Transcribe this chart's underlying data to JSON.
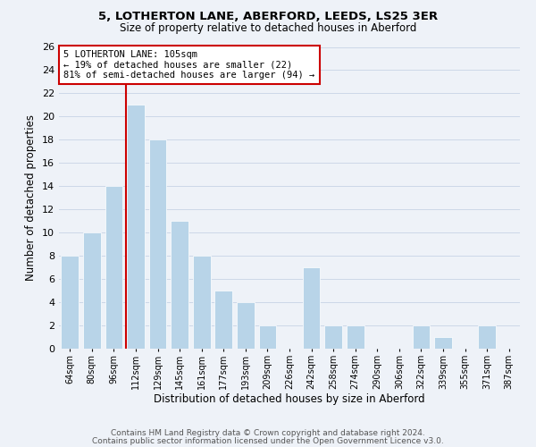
{
  "title": "5, LOTHERTON LANE, ABERFORD, LEEDS, LS25 3ER",
  "subtitle": "Size of property relative to detached houses in Aberford",
  "xlabel": "Distribution of detached houses by size in Aberford",
  "ylabel": "Number of detached properties",
  "footer_line1": "Contains HM Land Registry data © Crown copyright and database right 2024.",
  "footer_line2": "Contains public sector information licensed under the Open Government Licence v3.0.",
  "bins": [
    "64sqm",
    "80sqm",
    "96sqm",
    "112sqm",
    "129sqm",
    "145sqm",
    "161sqm",
    "177sqm",
    "193sqm",
    "209sqm",
    "226sqm",
    "242sqm",
    "258sqm",
    "274sqm",
    "290sqm",
    "306sqm",
    "322sqm",
    "339sqm",
    "355sqm",
    "371sqm",
    "387sqm"
  ],
  "values": [
    8,
    10,
    14,
    21,
    18,
    11,
    8,
    5,
    4,
    2,
    0,
    7,
    2,
    2,
    0,
    0,
    2,
    1,
    0,
    2,
    0
  ],
  "bar_color": "#b8d4e8",
  "annotation_title": "5 LOTHERTON LANE: 105sqm",
  "annotation_line1": "← 19% of detached houses are smaller (22)",
  "annotation_line2": "81% of semi-detached houses are larger (94) →",
  "annotation_box_color": "#ffffff",
  "annotation_box_edge": "#cc0000",
  "property_line_color": "#cc0000",
  "ylim": [
    0,
    26
  ],
  "yticks": [
    0,
    2,
    4,
    6,
    8,
    10,
    12,
    14,
    16,
    18,
    20,
    22,
    24,
    26
  ],
  "grid_color": "#ccd8e8",
  "background_color": "#eef2f8"
}
